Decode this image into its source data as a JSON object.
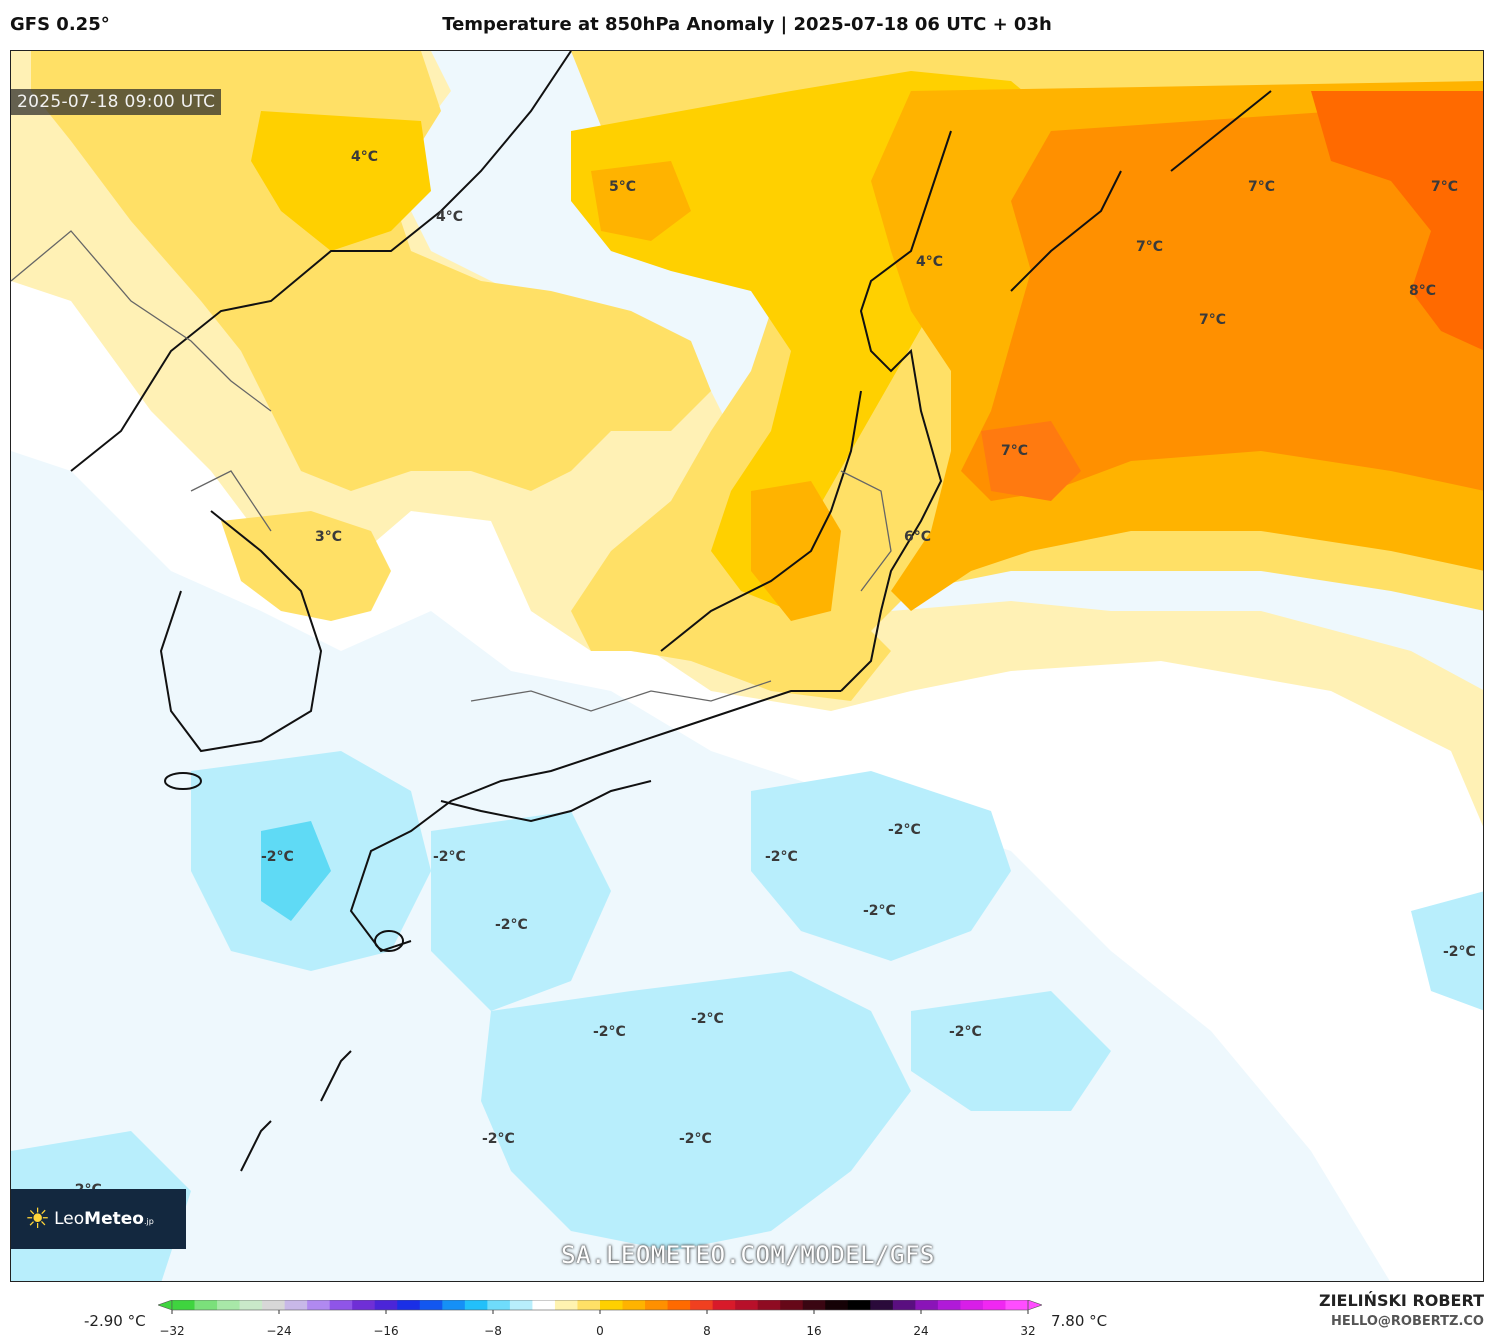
{
  "header": {
    "model": "GFS 0.25°",
    "title": "Temperature at 850hPa Anomaly | 2025-07-18 06 UTC + 03h"
  },
  "map": {
    "valid_time": "2025-07-18 09:00 UTC",
    "watermark": "SA.LEOMETEO.COM/MODEL/GFS",
    "logo": {
      "name_light": "Leo",
      "name_bold": "Meteo",
      "suffix": ".jp",
      "icon": "sun-icon"
    },
    "labels": [
      {
        "text": "4°C"
      },
      {
        "text": "5°C"
      },
      {
        "text": "4°C"
      },
      {
        "text": "4°C"
      },
      {
        "text": "7°C"
      },
      {
        "text": "7°C"
      },
      {
        "text": "7°C"
      },
      {
        "text": "8°C"
      },
      {
        "text": "7°C"
      },
      {
        "text": "7°C"
      },
      {
        "text": "3°C"
      },
      {
        "text": "6°C"
      },
      {
        "text": "-2°C"
      },
      {
        "text": "-2°C"
      },
      {
        "text": "-2°C"
      },
      {
        "text": "-2°C"
      },
      {
        "text": "-2°C"
      },
      {
        "text": "-2°C"
      },
      {
        "text": "-2°C"
      },
      {
        "text": "-2°C"
      },
      {
        "text": "-2°C"
      },
      {
        "text": "-2°C"
      },
      {
        "text": "-2°C"
      },
      {
        "text": "-2°C"
      },
      {
        "text": "-2°C"
      }
    ]
  },
  "colorbar": {
    "min_label": "-2.90 °C",
    "max_label": "7.80 °C",
    "ticks": [
      "−32",
      "−24",
      "−16",
      "−8",
      "0",
      "8",
      "16",
      "24",
      "32"
    ],
    "colors": [
      "#3fd43f",
      "#7be07b",
      "#a8e8a8",
      "#c9e9c9",
      "#d7d7d7",
      "#c8b8e8",
      "#b089f0",
      "#8f55e8",
      "#6f2fd6",
      "#4b25d8",
      "#1a2fe6",
      "#1257f0",
      "#1590f6",
      "#22c0fa",
      "#6fdcfb",
      "#b8eefc",
      "#ffffff",
      "#fff3b0",
      "#ffe066",
      "#ffd000",
      "#ffb300",
      "#ff9000",
      "#ff6a00",
      "#f04020",
      "#d81a2a",
      "#b8102a",
      "#8f0b22",
      "#660818",
      "#3a0612",
      "#150206",
      "#000000",
      "#2a0a3a",
      "#5a0f80",
      "#8a14b8",
      "#b01ad8",
      "#d81ee8",
      "#f027f2",
      "#ff4dff"
    ]
  },
  "credit": {
    "author": "ZIELIŃSKI ROBERT",
    "email": "HELLO@ROBERTZ.CO"
  }
}
